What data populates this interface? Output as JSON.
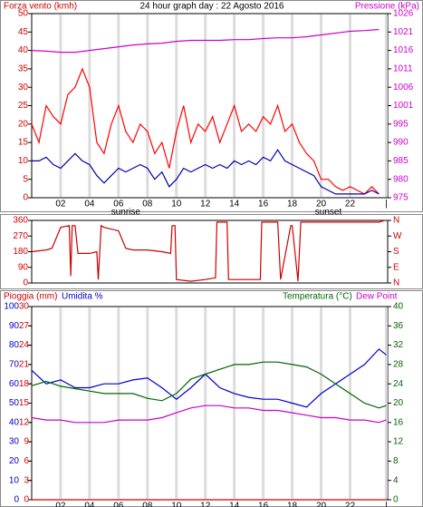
{
  "chart_data": [
    {
      "type": "line",
      "title": "24 hour graph day : 22 Agosto 2016",
      "y_label": "Forza vento (kmh)",
      "y_color": "#cc0000",
      "y2_label": "Pressione (kPa)",
      "y2_color": "#cc00cc",
      "xlim": [
        0,
        24.6
      ],
      "xticks": [
        {
          "value": 2,
          "label": "02"
        },
        {
          "value": 4,
          "label": "04"
        },
        {
          "value": 6,
          "label": "06"
        },
        {
          "value": 8,
          "label": "08"
        },
        {
          "value": 10,
          "label": "10"
        },
        {
          "value": 12,
          "label": "12"
        },
        {
          "value": 14,
          "label": "14"
        },
        {
          "value": 16,
          "label": "16"
        },
        {
          "value": 18,
          "label": "18"
        },
        {
          "value": 20,
          "label": "20"
        },
        {
          "value": 22,
          "label": "22"
        },
        {
          "value": 24.5,
          "label": "|"
        }
      ],
      "ylim": [
        0,
        50
      ],
      "yticks": [
        0,
        5,
        10,
        15,
        20,
        25,
        30,
        35,
        40,
        45,
        50
      ],
      "y2lim": [
        975,
        1026
      ],
      "y2ticks": [
        975,
        {
          "value": 980.1,
          "label": "980"
        },
        {
          "value": 985.2,
          "label": "985"
        },
        {
          "value": 990.3,
          "label": "990"
        },
        {
          "value": 995.4,
          "label": "995"
        },
        {
          "value": 1000.5,
          "label": "1001"
        },
        {
          "value": 1005.6,
          "label": "1006"
        },
        {
          "value": 1010.7,
          "label": "1011"
        },
        {
          "value": 1015.8,
          "label": "1016"
        },
        {
          "value": 1020.9,
          "label": "1021"
        },
        1026
      ],
      "annotations": [
        {
          "x": 6.5,
          "text": "sunrise"
        },
        {
          "x": 20.5,
          "text": "sunset"
        }
      ],
      "x": [
        0,
        0.5,
        1,
        1.5,
        2,
        2.5,
        3,
        3.5,
        4,
        4.5,
        5,
        5.5,
        6,
        6.5,
        7,
        7.5,
        8,
        8.5,
        9,
        9.5,
        10,
        10.5,
        11,
        11.5,
        12,
        12.5,
        13,
        13.5,
        14,
        14.5,
        15,
        15.5,
        16,
        16.5,
        17,
        17.5,
        18,
        18.5,
        19,
        19.5,
        20,
        20.5,
        21,
        21.5,
        22,
        22.5,
        23,
        23.5,
        24
      ],
      "series": [
        {
          "color": "#ff0000",
          "values": [
            20,
            15,
            25,
            22,
            20,
            28,
            30,
            35,
            30,
            15,
            12,
            20,
            25,
            18,
            15,
            20,
            18,
            12,
            15,
            8,
            18,
            25,
            15,
            20,
            18,
            22,
            15,
            20,
            25,
            18,
            20,
            18,
            22,
            20,
            25,
            18,
            20,
            15,
            12,
            10,
            5,
            5,
            3,
            2,
            3,
            2,
            1,
            3,
            1
          ]
        },
        {
          "color": "#0000aa",
          "values": [
            10,
            10,
            11,
            9,
            8,
            10,
            12,
            10,
            9,
            6,
            4,
            6,
            8,
            7,
            8,
            9,
            8,
            5,
            7,
            3,
            5,
            8,
            7,
            8,
            9,
            8,
            9,
            8,
            10,
            9,
            10,
            9,
            11,
            10,
            13,
            10,
            9,
            8,
            7,
            6,
            3,
            2,
            1,
            1,
            1,
            1,
            1,
            2,
            1
          ]
        },
        {
          "color": "#cc00cc",
          "axis": "y2",
          "x": [
            0,
            1,
            2,
            3,
            4,
            5,
            6,
            7,
            8,
            9,
            10,
            11,
            12,
            13,
            14,
            15,
            16,
            17,
            18,
            19,
            20,
            21,
            22,
            23,
            24
          ],
          "values": [
            1015.8,
            1015.6,
            1015.3,
            1015.3,
            1015.8,
            1016.3,
            1016.8,
            1017.3,
            1017.6,
            1017.8,
            1018.3,
            1018.6,
            1018.6,
            1018.6,
            1018.8,
            1018.8,
            1019.1,
            1019.3,
            1019.3,
            1019.6,
            1020.1,
            1020.6,
            1021.1,
            1021.3,
            1021.6
          ]
        }
      ]
    },
    {
      "type": "line",
      "y_color": "#cc0000",
      "y2_color": "#cc0000",
      "xlim": [
        0,
        24.6
      ],
      "ylim": [
        0,
        360
      ],
      "yticks": [
        0,
        90,
        180,
        270,
        360
      ],
      "y2lim": [
        0,
        360
      ],
      "y2ticks": [
        {
          "value": 0,
          "label": "N"
        },
        {
          "value": 90,
          "label": "E"
        },
        {
          "value": 180,
          "label": "S"
        },
        {
          "value": 270,
          "label": "W"
        },
        {
          "value": 360,
          "label": "N"
        }
      ],
      "x": [
        0,
        1,
        1.4,
        2,
        2.6,
        2.7,
        2.8,
        3,
        3.2,
        4,
        4.5,
        4.6,
        4.8,
        5,
        6,
        6.5,
        7,
        8,
        9,
        9.6,
        9.7,
        9.9,
        10,
        11,
        12,
        12.7,
        12.8,
        13.5,
        13.6,
        15.8,
        15.9,
        17,
        17.2,
        17.9,
        18,
        18.4,
        18.6,
        19,
        20,
        24,
        24.4
      ],
      "series": [
        {
          "color": "#cc0000",
          "values": [
            180,
            190,
            200,
            320,
            330,
            40,
            330,
            330,
            170,
            170,
            180,
            20,
            330,
            320,
            300,
            200,
            190,
            190,
            180,
            170,
            330,
            330,
            20,
            10,
            20,
            30,
            350,
            350,
            20,
            20,
            350,
            350,
            20,
            330,
            330,
            10,
            350,
            350,
            350,
            350,
            360
          ]
        }
      ]
    },
    {
      "type": "line",
      "y_color": "#0000cc",
      "y2_color": "#006600",
      "y3_color": "#cc0000",
      "xlim": [
        0,
        24.6
      ],
      "xticks": [
        {
          "value": 2,
          "label": "02"
        },
        {
          "value": 4,
          "label": "04"
        },
        {
          "value": 6,
          "label": "06"
        },
        {
          "value": 8,
          "label": "08"
        },
        {
          "value": 10,
          "label": "10"
        },
        {
          "value": 12,
          "label": "12"
        },
        {
          "value": 14,
          "label": "14"
        },
        {
          "value": 16,
          "label": "16"
        },
        {
          "value": 18,
          "label": "18"
        },
        {
          "value": 20,
          "label": "20"
        },
        {
          "value": 22,
          "label": "22"
        },
        {
          "value": 24.5,
          "label": "|"
        }
      ],
      "ylim": [
        0,
        100
      ],
      "yticks": [
        0,
        10,
        20,
        30,
        40,
        50,
        60,
        70,
        80,
        90,
        100
      ],
      "y3lim": [
        0,
        30
      ],
      "y3ticks": [
        0,
        3,
        6,
        9,
        12,
        15,
        18,
        21,
        24,
        27,
        30
      ],
      "y2lim": [
        0,
        40
      ],
      "y2ticks": [
        0,
        4,
        8,
        12,
        16,
        20,
        24,
        28,
        32,
        36,
        40
      ],
      "annotations": [
        {
          "x": 6.5,
          "text": "sunrise"
        },
        {
          "x": 20.5,
          "text": "sunset"
        }
      ],
      "x": [
        0,
        1,
        2,
        3,
        4,
        5,
        6,
        7,
        8,
        9,
        10,
        11,
        12,
        13,
        14,
        15,
        16,
        17,
        18,
        19,
        20,
        21,
        22,
        23,
        24,
        24.5
      ],
      "series": [
        {
          "name": "Pioggia (mm)",
          "color": "#cc0000",
          "axis": "y3",
          "x": [
            0,
            24.5
          ],
          "values": [
            0,
            0
          ]
        },
        {
          "name": "Umidita %",
          "color": "#0000cc",
          "values": [
            67,
            60,
            62,
            58,
            58,
            60,
            60,
            62,
            63,
            58,
            52,
            58,
            65,
            58,
            55,
            53,
            52,
            52,
            50,
            48,
            55,
            60,
            65,
            70,
            78,
            75
          ]
        },
        {
          "name": "Temperatura (°C)",
          "color": "#006600",
          "axis": "y2",
          "values": [
            23.6,
            24.5,
            23.5,
            23,
            22.5,
            22,
            22,
            22,
            21,
            20.5,
            22,
            25,
            26,
            27,
            28,
            28,
            28.5,
            28.5,
            28,
            27.5,
            26,
            24,
            22,
            20,
            19,
            19.5
          ]
        },
        {
          "name": "Dew Point",
          "color": "#cc00cc",
          "axis": "y2",
          "values": [
            17,
            16.5,
            16.5,
            16,
            16,
            16,
            16.5,
            16.5,
            16.5,
            17,
            18,
            19,
            19.5,
            19.5,
            19,
            19,
            18.5,
            18.5,
            18,
            17.5,
            17,
            17,
            16.5,
            16.5,
            16,
            16.5
          ]
        }
      ]
    }
  ]
}
